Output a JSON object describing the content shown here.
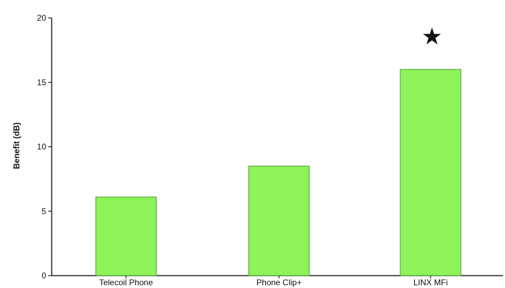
{
  "chart_data": {
    "type": "bar",
    "title": "",
    "xlabel": "",
    "ylabel": "Benefit (dB)",
    "categories": [
      "Telecoil Phone",
      "Phone Clip+",
      "LINX MFi"
    ],
    "values": [
      6.1,
      8.5,
      16
    ],
    "ylim": [
      0,
      20
    ],
    "yticks": [
      0,
      5,
      10,
      15,
      20
    ],
    "grid": false,
    "legend": "none",
    "bar_color": "#8ef25a",
    "bar_edge_color": "#4e9a2e",
    "annotations": [
      {
        "category": "LINX MFi",
        "symbol": "★",
        "value": 18.6
      }
    ]
  }
}
